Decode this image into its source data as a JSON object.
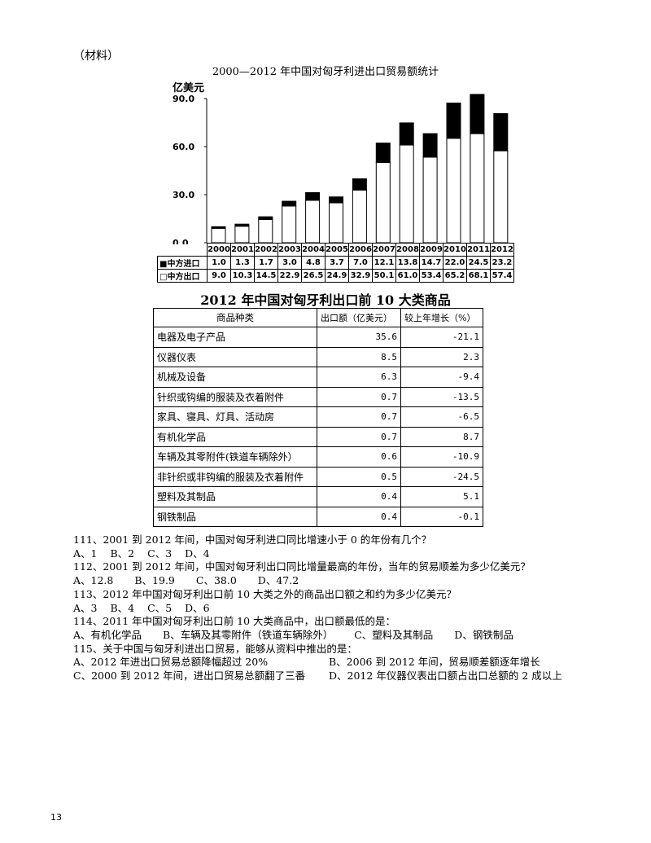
{
  "material_label": "（材料）",
  "chart": {
    "title": "2000—2012 年中国对匈牙利进出口贸易额统计",
    "y_unit": "亿美元",
    "y_ticks": [
      "90.0",
      "60.0",
      "30.0",
      "0.0"
    ],
    "import_label": "■中方进口",
    "export_label": "□中方出口",
    "colors": {
      "import": "#000000",
      "export": "#ffffff"
    }
  },
  "chart_data": {
    "type": "bar",
    "stacked": true,
    "title": "2000—2012 年中国对匈牙利进出口贸易额统计",
    "ylabel": "亿美元",
    "ylim": [
      0,
      90
    ],
    "categories": [
      "2000",
      "2001",
      "2002",
      "2003",
      "2004",
      "2005",
      "2006",
      "2007",
      "2008",
      "2009",
      "2010",
      "2011",
      "2012"
    ],
    "series": [
      {
        "name": "中方出口",
        "values": [
          9.0,
          10.3,
          14.5,
          22.9,
          26.5,
          24.9,
          32.9,
          50.1,
          61.0,
          53.4,
          65.2,
          68.1,
          57.4
        ]
      },
      {
        "name": "中方进口",
        "values": [
          1.0,
          1.3,
          1.7,
          3.0,
          4.8,
          3.7,
          7.0,
          12.1,
          13.8,
          14.7,
          22.0,
          24.5,
          23.2
        ]
      }
    ],
    "import_str": [
      "1.0",
      "1.3",
      "1.7",
      "3.0",
      "4.8",
      "3.7",
      "7.0",
      "12.1",
      "13.8",
      "14.7",
      "22.0",
      "24.5",
      "23.2"
    ],
    "export_str": [
      "9.0",
      "10.3",
      "14.5",
      "22.9",
      "26.5",
      "24.9",
      "32.9",
      "50.1",
      "61.0",
      "53.4",
      "65.2",
      "68.1",
      "57.4"
    ]
  },
  "table2": {
    "title": "2012 年中国对匈牙利出口前 10 大类商品",
    "headers": [
      "商品种类",
      "出口额（亿美元）",
      "较上年增长（%）"
    ],
    "rows": [
      [
        "电器及电子产品",
        "35.6",
        "-21.1"
      ],
      [
        "仪器仪表",
        "8.5",
        "2.3"
      ],
      [
        "机械及设备",
        "6.3",
        "-9.4"
      ],
      [
        "针织或钩编的服装及衣着附件",
        "0.7",
        "-13.5"
      ],
      [
        "家具、寝具、灯具、活动房",
        "0.7",
        "-6.5"
      ],
      [
        "有机化学品",
        "0.7",
        "8.7"
      ],
      [
        "车辆及其零附件(铁道车辆除外）",
        "0.6",
        "-10.9"
      ],
      [
        "非针织或非钩编的服装及衣着附件",
        "0.5",
        "-24.5"
      ],
      [
        "塑料及其制品",
        "0.4",
        "5.1"
      ],
      [
        "钢铁制品",
        "0.4",
        "-0.1"
      ]
    ]
  },
  "questions": [
    {
      "text": "111、2001 到 2012 年间，中国对匈牙利进口同比增速小于 0 的年份有几个？",
      "option_lines": [
        [
          "A、1",
          "B、2",
          "C、3",
          "D、4"
        ]
      ]
    },
    {
      "text": "112、2001 到 2012 年间，中国对匈牙利出口同比增量最高的年份，当年的贸易顺差为多少亿美元？",
      "option_lines": [
        [
          "A、12.8",
          "B、19.9",
          "C、38.0",
          "D、47.2"
        ]
      ]
    },
    {
      "text": "113、2012 年中国对匈牙利出口前 10 大类之外的商品出口额之和约为多少亿美元？",
      "option_lines": [
        [
          "A、3",
          "B、4",
          "C、5",
          "D、6"
        ]
      ]
    },
    {
      "text": "114、2011 年中国对匈牙利出口前 10 大类商品中，出口额最低的是：",
      "option_lines": [
        [
          "A、有机化学品",
          "B、车辆及其零附件（铁道车辆除外）",
          "C、塑料及其制品",
          "D、钢铁制品"
        ]
      ]
    },
    {
      "text": "115、关于中国与匈牙利进出口贸易，能够从资料中推出的是：",
      "option_lines": [
        [
          "A、2012 年进出口贸易总额降幅超过 20%",
          "B、2006 到 2012 年间，贸易顺差额逐年增长"
        ],
        [
          "C、2000 到 2012 年间，进出口贸易总额翻了三番",
          "D、2012 年仪器仪表出口额占出口总额的 2 成以上"
        ]
      ]
    }
  ],
  "page_number": "13"
}
